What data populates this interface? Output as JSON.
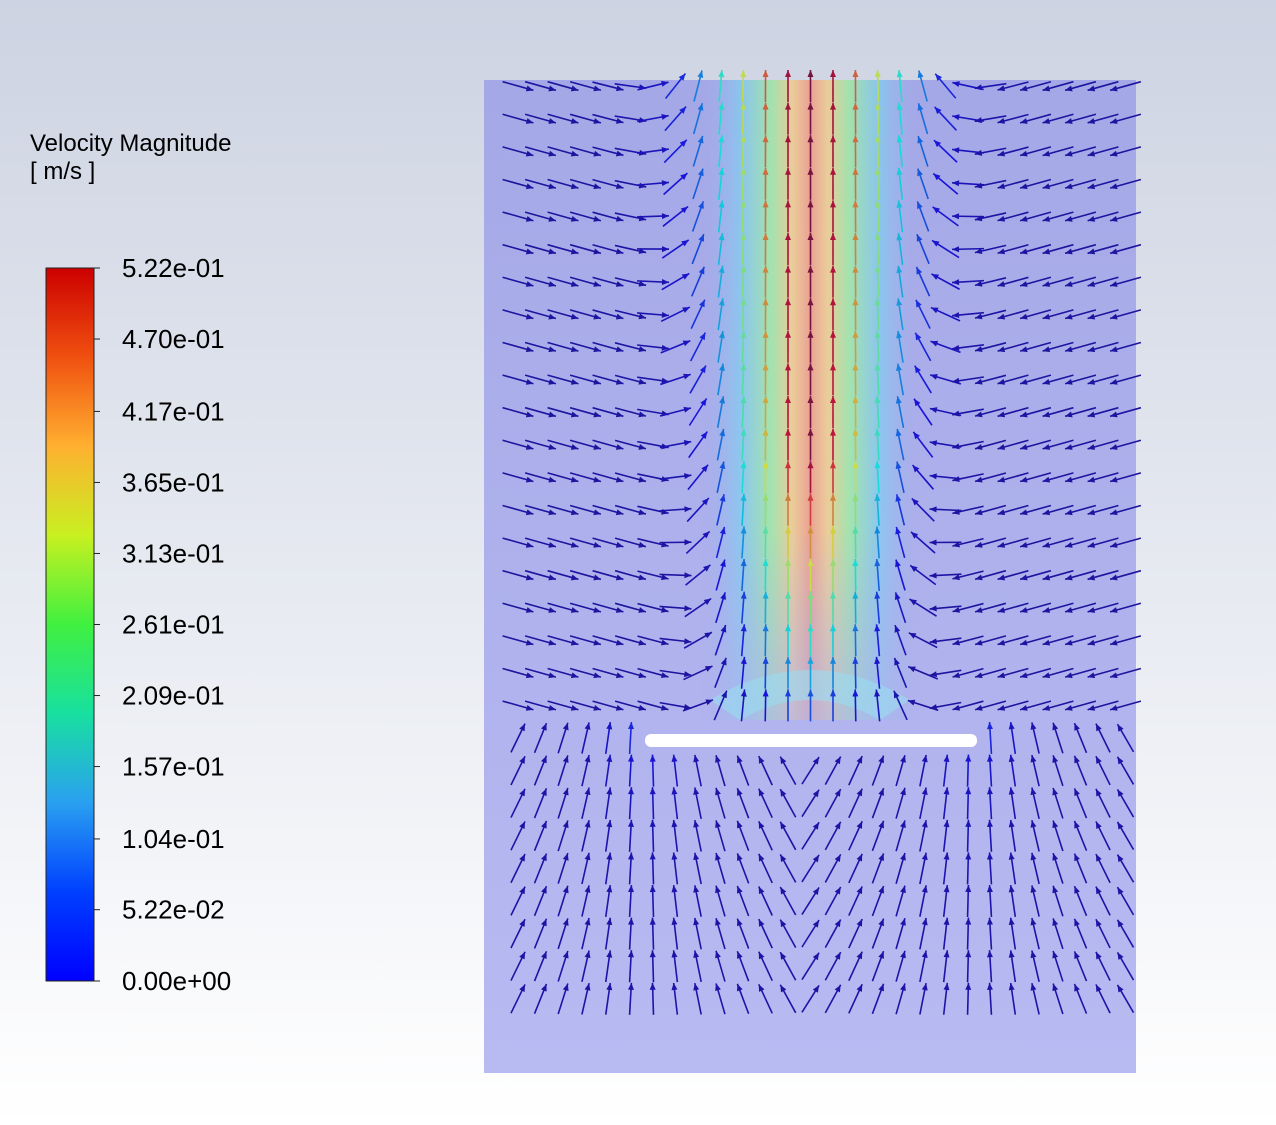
{
  "chart_data": {
    "type": "vector",
    "title": "Velocity Magnitude",
    "unit": "[ m/s ]",
    "vlim": [
      0,
      0.522
    ],
    "vticks": [
      {
        "value": 0.522,
        "label": "5.22e-01"
      },
      {
        "value": 0.47,
        "label": "4.70e-01"
      },
      {
        "value": 0.417,
        "label": "4.17e-01"
      },
      {
        "value": 0.365,
        "label": "3.65e-01"
      },
      {
        "value": 0.313,
        "label": "3.13e-01"
      },
      {
        "value": 0.261,
        "label": "2.61e-01"
      },
      {
        "value": 0.209,
        "label": "2.09e-01"
      },
      {
        "value": 0.157,
        "label": "1.57e-01"
      },
      {
        "value": 0.104,
        "label": "1.04e-01"
      },
      {
        "value": 0.0522,
        "label": "5.22e-02"
      },
      {
        "value": 0,
        "label": "0.00e+00"
      }
    ]
  }
}
